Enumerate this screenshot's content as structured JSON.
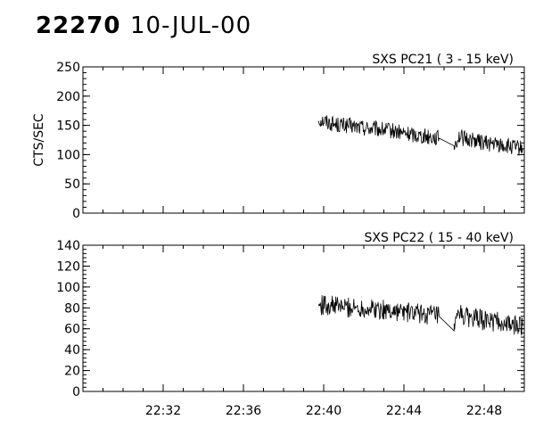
{
  "header": {
    "id": "22270",
    "date": "10-JUL-00"
  },
  "chart_data": [
    {
      "type": "line",
      "title": "SXS PC21  (  3 - 15 keV)",
      "ylabel": "CTS/SEC",
      "xlabel": "",
      "ylim": [
        0,
        250
      ],
      "yticks": [
        "0",
        "50",
        "100",
        "150",
        "200",
        "250"
      ],
      "xlim": [
        "22:28:00",
        "22:50:00"
      ],
      "xticks": [],
      "series": [
        {
          "x": [
            "22:39:45",
            "22:40:00",
            "22:40:30",
            "22:41:00",
            "22:41:30",
            "22:42:00",
            "22:42:30",
            "22:43:00",
            "22:43:30",
            "22:44:00",
            "22:44:30",
            "22:45:00",
            "22:45:30",
            "22:45:45",
            "22:46:30",
            "22:46:45",
            "22:47:00",
            "22:47:30",
            "22:48:00",
            "22:48:30",
            "22:49:00",
            "22:49:30",
            "22:49:55"
          ],
          "y": [
            160,
            158,
            152,
            150,
            148,
            146,
            144,
            142,
            140,
            136,
            134,
            132,
            130,
            128,
            115,
            132,
            127,
            125,
            120,
            118,
            115,
            112,
            110
          ]
        }
      ]
    },
    {
      "type": "line",
      "title": "SXS PC22  ( 15 - 40 keV)",
      "ylabel": "",
      "xlabel": "",
      "ylim": [
        0,
        140
      ],
      "yticks": [
        "0",
        "20",
        "40",
        "60",
        "80",
        "100",
        "120",
        "140"
      ],
      "xlim": [
        "22:28:00",
        "22:50:00"
      ],
      "xticks": [
        "22:32",
        "22:36",
        "22:40",
        "22:44",
        "22:48"
      ],
      "series": [
        {
          "x": [
            "22:39:45",
            "22:40:00",
            "22:40:30",
            "22:41:00",
            "22:41:30",
            "22:42:00",
            "22:42:30",
            "22:43:00",
            "22:43:30",
            "22:44:00",
            "22:44:30",
            "22:45:00",
            "22:45:30",
            "22:45:45",
            "22:46:30",
            "22:46:45",
            "22:47:00",
            "22:47:30",
            "22:48:00",
            "22:48:30",
            "22:49:00",
            "22:49:30",
            "22:49:55"
          ],
          "y": [
            82,
            83,
            82,
            81,
            80,
            80,
            79,
            78,
            77,
            76,
            75,
            74,
            73,
            72,
            58,
            75,
            72,
            70,
            68,
            67,
            65,
            63,
            63
          ]
        }
      ]
    }
  ]
}
